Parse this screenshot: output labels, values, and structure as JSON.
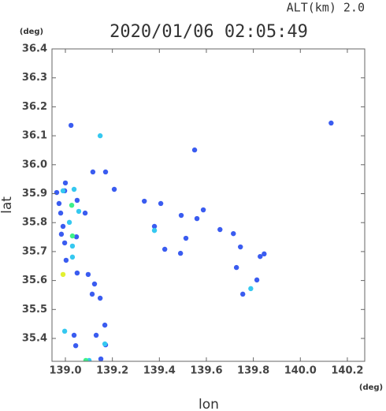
{
  "chart_data": {
    "type": "scatter",
    "title": "2020/01/06 02:05:49",
    "subtitle": "ALT(km)  2.0",
    "x_label": "lon",
    "y_label": "lat",
    "x_unit": "(deg)",
    "y_unit": "(deg)",
    "xlim": [
      138.943,
      140.274
    ],
    "ylim": [
      35.321,
      36.4
    ],
    "xticks": [
      {
        "value": 139,
        "label": "139.0"
      },
      139.2,
      139.4,
      139.6,
      139.8,
      {
        "value": 140,
        "label": "140.0"
      },
      140.2
    ],
    "yticks": [
      36.4,
      36.3,
      36.2,
      36.1,
      {
        "value": 36,
        "label": "36.0"
      },
      35.9,
      35.8,
      35.7,
      35.6,
      35.5,
      35.4
    ],
    "series": [
      {
        "color": "#3a5cf0",
        "x": [
          139.024,
          140.131,
          139.55,
          139.117,
          139.171,
          139.208,
          139.406,
          139.493,
          138.997,
          138.963,
          138.973,
          138.98,
          139.05,
          138.99,
          139.047,
          138.983,
          138.997,
          139.003,
          139.05,
          139.097,
          139.124,
          139.114,
          139.148,
          139.168,
          139.037,
          139.044,
          139.131,
          139.171,
          139.379,
          139.423,
          139.49,
          139.745,
          139.728,
          139.829,
          139.755,
          139.815,
          139.846,
          139.513,
          139.56,
          139.658,
          139.587,
          139.715,
          139.084,
          139.0,
          139.151,
          139.336
        ],
        "values": [
          36.136,
          36.144,
          36.051,
          35.975,
          35.975,
          35.915,
          35.866,
          35.825,
          35.91,
          35.904,
          35.866,
          35.833,
          35.877,
          35.787,
          35.751,
          35.76,
          35.73,
          35.67,
          35.626,
          35.621,
          35.588,
          35.553,
          35.539,
          35.446,
          35.411,
          35.375,
          35.411,
          35.378,
          35.787,
          35.708,
          35.694,
          35.716,
          35.645,
          35.683,
          35.553,
          35.602,
          35.692,
          35.746,
          35.814,
          35.776,
          35.844,
          35.762,
          35.833,
          35.937,
          35.329,
          35.874
        ]
      },
      {
        "color": "#35c8f0",
        "x": [
          139.148,
          139.037,
          139.057,
          139.03,
          139.03,
          139.017,
          138.997,
          139.168,
          139.789,
          139.379,
          139.101,
          138.99
        ],
        "values": [
          36.1,
          35.915,
          35.839,
          35.719,
          35.681,
          35.801,
          35.425,
          35.381,
          35.572,
          35.773,
          35.324,
          35.91
        ]
      },
      {
        "color": "#3ef08a",
        "x": [
          139.03,
          139.027,
          139.087
        ],
        "values": [
          35.754,
          35.86,
          35.324
        ]
      },
      {
        "color": "#e2f030",
        "x": [
          138.99
        ],
        "values": [
          35.621
        ]
      }
    ]
  }
}
